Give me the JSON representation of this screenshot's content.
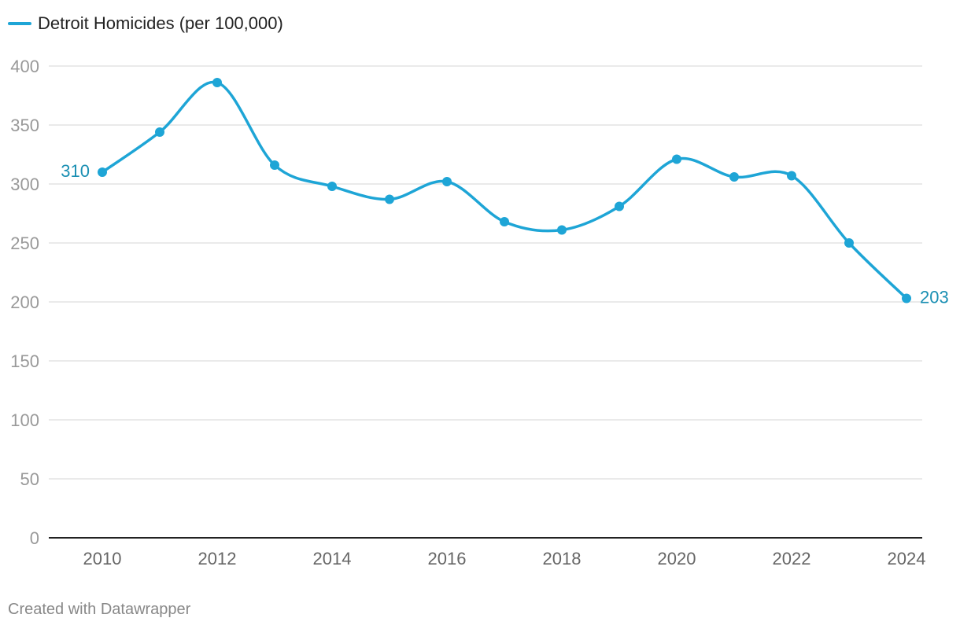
{
  "chart_data": {
    "type": "line",
    "title": "",
    "xlabel": "",
    "ylabel": "",
    "x": [
      2010,
      2011,
      2012,
      2013,
      2014,
      2015,
      2016,
      2017,
      2018,
      2019,
      2020,
      2021,
      2022,
      2023,
      2024
    ],
    "series": [
      {
        "name": "Detroit Homicides (per 100,000)",
        "values": [
          310,
          344,
          386,
          316,
          298,
          287,
          302,
          268,
          261,
          281,
          321,
          306,
          307,
          250,
          203
        ]
      }
    ],
    "ylim": [
      0,
      400
    ],
    "xlim": [
      2010,
      2024
    ],
    "y_ticks": [
      "0",
      "50",
      "100",
      "150",
      "200",
      "250",
      "300",
      "350",
      "400"
    ],
    "x_ticks": [
      "2010",
      "2012",
      "2014",
      "2016",
      "2018",
      "2020",
      "2022",
      "2024"
    ],
    "data_labels": [
      {
        "year": 2010,
        "text": "310",
        "side": "left"
      },
      {
        "year": 2024,
        "text": "203",
        "side": "right"
      }
    ],
    "grid": true,
    "legend_position": "top-left"
  },
  "colors": {
    "series": "#1ea5d6",
    "label": "#1a8fb3",
    "grid": "#e3e3e3",
    "axis": "#222222"
  },
  "footer": {
    "credit": "Created with Datawrapper"
  }
}
